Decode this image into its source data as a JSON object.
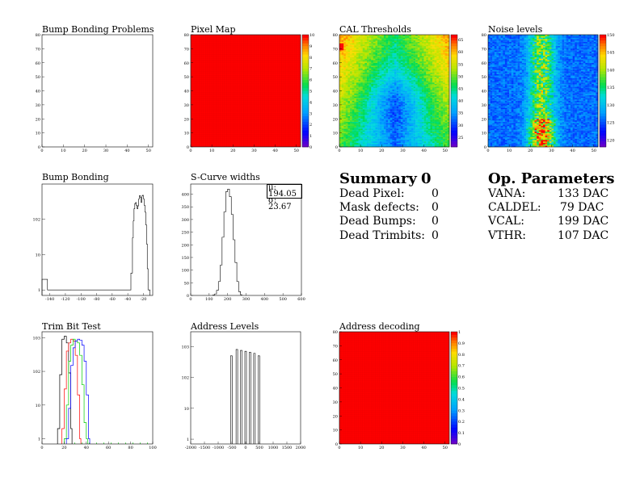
{
  "panels": [
    {
      "id": "bb_problems",
      "title": "Bump Bonding Problems",
      "type": "heatmap",
      "empty": true,
      "xlim": [
        0,
        52
      ],
      "ylim": [
        0,
        80
      ],
      "xticks": [
        0,
        10,
        20,
        30,
        40,
        50
      ],
      "yticks": [
        0,
        10,
        20,
        30,
        40,
        50,
        60,
        70,
        80
      ]
    },
    {
      "id": "pixel_map",
      "title": "Pixel Map",
      "type": "heatmap",
      "fill_value": 10,
      "xlim": [
        0,
        52
      ],
      "ylim": [
        0,
        80
      ],
      "xticks": [
        0,
        10,
        20,
        30,
        40,
        50
      ],
      "yticks": [
        0,
        10,
        20,
        30,
        40,
        50,
        60,
        70,
        80
      ],
      "zticks": [
        0,
        1,
        2,
        3,
        4,
        5,
        6,
        7,
        8,
        9,
        10
      ],
      "zlim": [
        0,
        10
      ]
    },
    {
      "id": "cal_thresholds",
      "title": "CAL Thresholds",
      "type": "heatmap",
      "xlim": [
        0,
        52
      ],
      "ylim": [
        0,
        80
      ],
      "xticks": [
        0,
        10,
        20,
        30,
        40,
        50
      ],
      "yticks": [
        0,
        10,
        20,
        30,
        40,
        50,
        60,
        70,
        80
      ],
      "zticks": [
        25,
        30,
        35,
        40,
        45,
        50,
        55,
        60,
        65
      ],
      "zlim": [
        21,
        67
      ]
    },
    {
      "id": "noise_levels",
      "title": "Noise levels",
      "type": "heatmap",
      "xlim": [
        0,
        52
      ],
      "ylim": [
        0,
        80
      ],
      "xticks": [
        0,
        10,
        20,
        30,
        40,
        50
      ],
      "yticks": [
        0,
        10,
        20,
        30,
        40,
        50,
        60,
        70,
        80
      ],
      "zticks": [
        120,
        125,
        130,
        135,
        140,
        145,
        150
      ],
      "zlim": [
        118,
        150
      ]
    },
    {
      "id": "bump_bonding",
      "title": "Bump Bonding",
      "type": "line",
      "ylog": true,
      "xlim": [
        -150,
        -8
      ],
      "ylim": [
        0.7,
        1000
      ],
      "xticks": [
        -140,
        -120,
        -100,
        -80,
        -60,
        -40,
        -20
      ],
      "yticks": [
        1,
        10,
        100
      ],
      "x": [
        -150,
        -144,
        -143,
        -38,
        -36,
        -34,
        -33,
        -32,
        -31,
        -30,
        -29,
        -28,
        -27,
        -26,
        -25,
        -24,
        -23,
        -22,
        -21,
        -20,
        -19,
        -18,
        -17,
        -16,
        -15,
        -14,
        -13
      ],
      "y": [
        2,
        2,
        1,
        1,
        3,
        30,
        90,
        200,
        280,
        300,
        250,
        200,
        240,
        380,
        470,
        420,
        300,
        460,
        480,
        380,
        250,
        160,
        70,
        20,
        4,
        1,
        1
      ]
    },
    {
      "id": "scurve_widths",
      "title": "S-Curve widths",
      "type": "line",
      "xlim": [
        0,
        600
      ],
      "ylim": [
        0,
        440
      ],
      "xticks": [
        0,
        100,
        200,
        300,
        400,
        500,
        600
      ],
      "yticks": [
        0,
        50,
        100,
        150,
        200,
        250,
        300,
        350,
        400
      ],
      "stats": {
        "mean_label": "μ: 194.05",
        "sigma_label": "σ: 23.67"
      },
      "x": [
        120,
        130,
        140,
        150,
        160,
        170,
        180,
        190,
        200,
        210,
        220,
        230,
        240,
        250,
        260,
        270
      ],
      "y": [
        2,
        6,
        20,
        55,
        120,
        230,
        330,
        410,
        420,
        390,
        320,
        220,
        130,
        55,
        15,
        3
      ]
    },
    {
      "id": "trim_bit_test",
      "title": "Trim Bit Test",
      "type": "line",
      "ylog": true,
      "xlim": [
        0,
        100
      ],
      "ylim": [
        0.7,
        1500
      ],
      "xticks": [
        0,
        20,
        40,
        60,
        80,
        100
      ],
      "yticks": [
        1,
        10,
        100,
        1000
      ],
      "series": [
        {
          "color": "#000000",
          "x": [
            14,
            16,
            18,
            20,
            22,
            24,
            26
          ],
          "y": [
            2,
            80,
            900,
            1100,
            700,
            90,
            2
          ]
        },
        {
          "color": "#ff0000",
          "x": [
            18,
            20,
            22,
            24,
            26,
            28,
            30,
            32,
            34
          ],
          "y": [
            2,
            30,
            400,
            700,
            900,
            800,
            300,
            20,
            1
          ]
        },
        {
          "color": "#00cc00",
          "x": [
            20,
            22,
            24,
            26,
            28,
            30,
            32,
            34,
            36,
            38,
            40
          ],
          "y": [
            1,
            10,
            200,
            600,
            900,
            800,
            700,
            300,
            40,
            3,
            1
          ]
        },
        {
          "color": "#0000ff",
          "x": [
            22,
            24,
            26,
            28,
            30,
            32,
            34,
            36,
            38,
            40,
            42
          ],
          "y": [
            1,
            8,
            150,
            500,
            800,
            900,
            850,
            600,
            200,
            20,
            1
          ]
        }
      ]
    },
    {
      "id": "address_levels",
      "title": "Address Levels",
      "type": "line",
      "ylog": true,
      "xlim": [
        -2000,
        2000
      ],
      "ylim": [
        0.7,
        3000
      ],
      "xticks": [
        -2000,
        -1500,
        -1000,
        -500,
        0,
        500,
        1000,
        1500,
        2000
      ],
      "yticks": [
        1,
        10,
        100,
        1000
      ],
      "peaks": [
        {
          "x": -520,
          "y": 500
        },
        {
          "x": -320,
          "y": 800
        },
        {
          "x": -160,
          "y": 750
        },
        {
          "x": 0,
          "y": 700
        },
        {
          "x": 160,
          "y": 650
        },
        {
          "x": 320,
          "y": 600
        },
        {
          "x": 480,
          "y": 500
        }
      ]
    },
    {
      "id": "address_decoding",
      "title": "Address decoding",
      "type": "heatmap",
      "fill_value": 1,
      "xlim": [
        0,
        52
      ],
      "ylim": [
        0,
        80
      ],
      "xticks": [
        0,
        10,
        20,
        30,
        40,
        50
      ],
      "yticks": [
        0,
        10,
        20,
        30,
        40,
        50,
        60,
        70,
        80
      ],
      "zticks": [
        0,
        0.1,
        0.2,
        0.3,
        0.4,
        0.5,
        0.6,
        0.7,
        0.8,
        0.9,
        1
      ],
      "zlim": [
        0,
        1
      ]
    }
  ],
  "summary": {
    "title": "Summary",
    "count": "0",
    "rows": [
      {
        "label": "Dead Pixel:",
        "value": "0"
      },
      {
        "label": "Mask defects:",
        "value": "0"
      },
      {
        "label": "Dead Bumps:",
        "value": "0"
      },
      {
        "label": "Dead Trimbits:",
        "value": "0"
      }
    ]
  },
  "op_params": {
    "title": "Op. Parameters",
    "rows": [
      {
        "label": "VANA:",
        "value": "133 DAC"
      },
      {
        "label": "CALDEL:",
        "value": "79 DAC"
      },
      {
        "label": "VCAL:",
        "value": "199 DAC"
      },
      {
        "label": "VTHR:",
        "value": "107 DAC"
      }
    ]
  }
}
